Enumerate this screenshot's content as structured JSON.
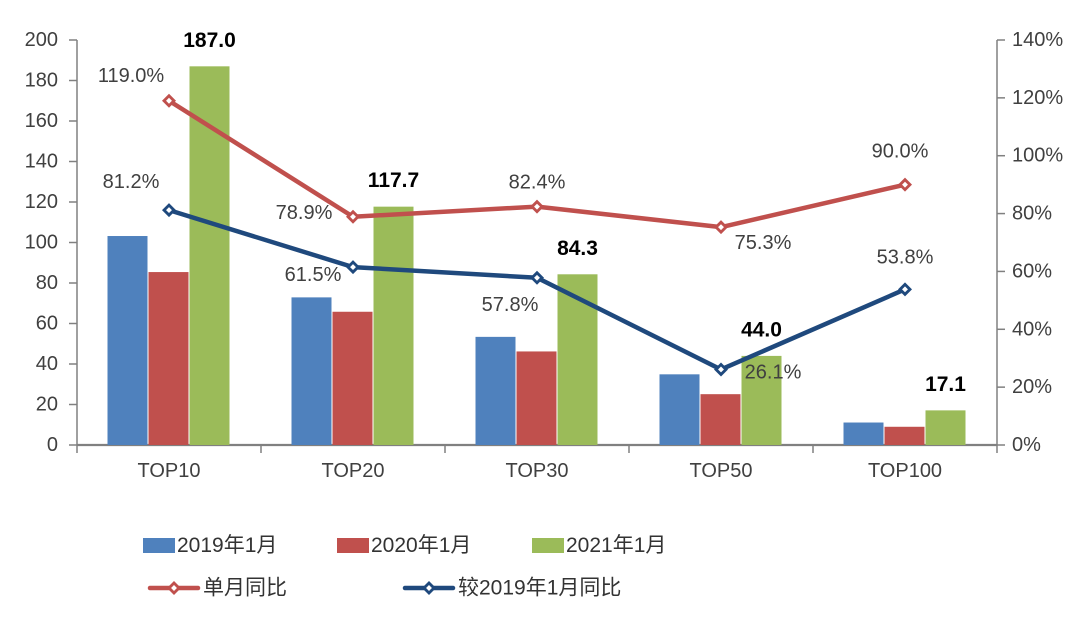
{
  "chart_data": {
    "type": "combo-bar-line",
    "title": "",
    "categories": [
      "TOP10",
      "TOP20",
      "TOP30",
      "TOP50",
      "TOP100"
    ],
    "bar_series": [
      {
        "name": "2019年1月",
        "color": "#4F81BD",
        "axis": "left",
        "values": [
          103.2,
          72.9,
          53.4,
          34.9,
          11.1
        ]
      },
      {
        "name": "2020年1月",
        "color": "#C0504D",
        "axis": "left",
        "values": [
          85.4,
          65.8,
          46.2,
          25.1,
          9.0
        ]
      },
      {
        "name": "2021年1月",
        "color": "#9BBB59",
        "axis": "left",
        "values": [
          187.0,
          117.7,
          84.3,
          44.0,
          17.1
        ],
        "data_labels": [
          "187.0",
          "117.7",
          "84.3",
          "44.0",
          "17.1"
        ]
      }
    ],
    "line_series": [
      {
        "name": "单月同比",
        "color": "#C0504D",
        "axis": "right",
        "values_pct": [
          119.0,
          78.9,
          82.4,
          75.3,
          90.0
        ],
        "data_labels": [
          "119.0%",
          "78.9%",
          "82.4%",
          "75.3%",
          "90.0%"
        ]
      },
      {
        "name": "较2019年1月同比",
        "color": "#1F497D",
        "axis": "right",
        "values_pct": [
          81.2,
          61.5,
          57.8,
          26.1,
          53.8
        ],
        "data_labels": [
          "81.2%",
          "61.5%",
          "57.8%",
          "26.1%",
          "53.8%"
        ]
      }
    ],
    "left_axis": {
      "min": 0,
      "max": 200,
      "step": 20,
      "tick_labels": [
        "0",
        "20",
        "40",
        "60",
        "80",
        "100",
        "120",
        "140",
        "160",
        "180",
        "200"
      ]
    },
    "right_axis": {
      "min": 0,
      "max": 140,
      "step": 20,
      "tick_labels": [
        "0%",
        "20%",
        "40%",
        "60%",
        "80%",
        "100%",
        "120%",
        "140%"
      ]
    },
    "grid": false,
    "legend": {
      "position": "bottom",
      "rows": [
        [
          "2019年1月",
          "2020年1月",
          "2021年1月"
        ],
        [
          "单月同比",
          "较2019年1月同比"
        ]
      ]
    },
    "colors": {
      "axis_line": "#808080",
      "tick_label": "#404040",
      "category_label": "#404040",
      "pct_data_label": "#404040",
      "bold_data_label": "#000000",
      "marker_hole": "#ffffff"
    }
  }
}
